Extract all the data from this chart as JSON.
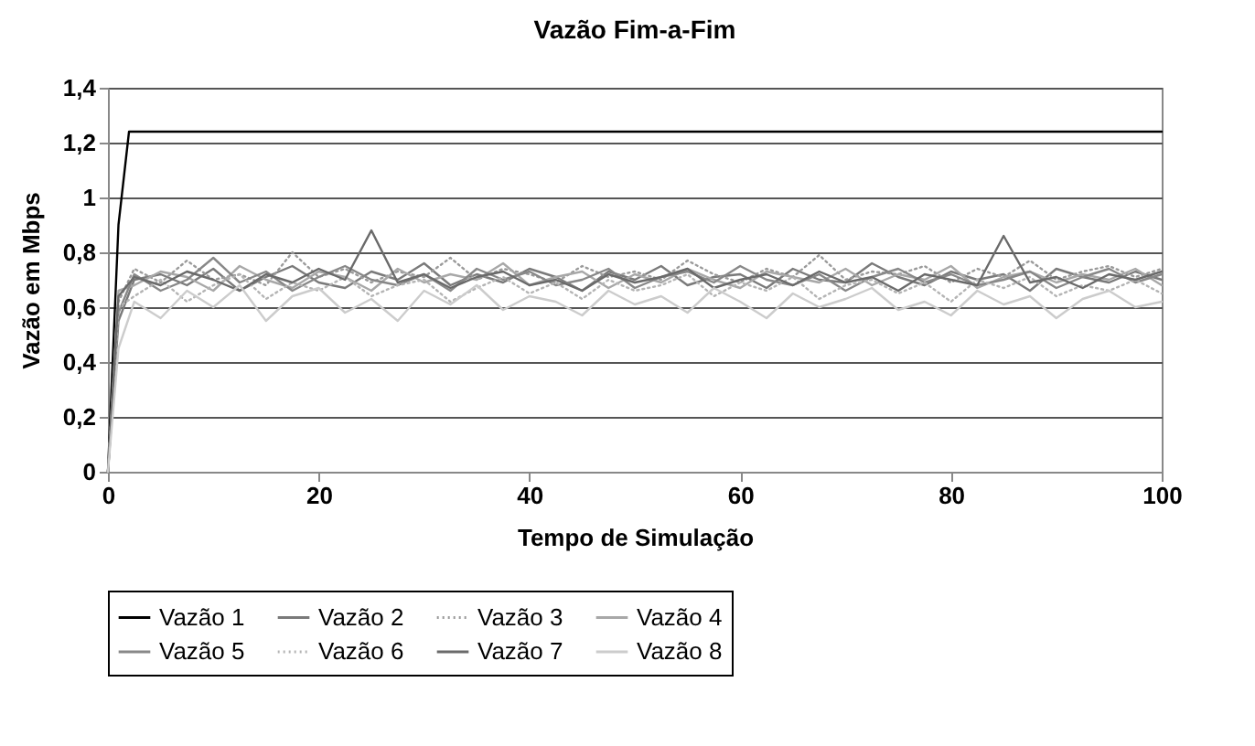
{
  "chart_data": {
    "type": "line",
    "title": "Vazão Fim-a-Fim",
    "xlabel": "Tempo de Simulação",
    "ylabel": "Vazão em Mbps",
    "xlim": [
      0,
      100
    ],
    "xticks": [
      0,
      20,
      40,
      60,
      80,
      100
    ],
    "ylim": [
      0,
      1.4
    ],
    "yticks": [
      0,
      {
        "value": 0.2,
        "label": "0,2"
      },
      {
        "value": 0.4,
        "label": "0,4"
      },
      {
        "value": 0.6,
        "label": "0,6"
      },
      {
        "value": 0.8,
        "label": "0,8"
      },
      1,
      {
        "value": 1.2,
        "label": "1,2"
      },
      {
        "value": 1.4,
        "label": "1,4"
      }
    ],
    "grid": "y",
    "legend": "bottom",
    "line_style": "solid",
    "x": [
      0,
      1,
      2.5,
      5,
      7.5,
      10,
      12.5,
      15,
      17.5,
      20,
      22.5,
      25,
      27.5,
      30,
      32.5,
      35,
      37.5,
      40,
      42.5,
      45,
      47.5,
      50,
      52.5,
      55,
      57.5,
      60,
      62.5,
      65,
      67.5,
      70,
      72.5,
      75,
      77.5,
      80,
      82.5,
      85,
      87.5,
      90,
      92.5,
      95,
      97.5,
      100
    ],
    "series": [
      {
        "name": "Vazão 1",
        "color": "#000000",
        "x": [
          0,
          1,
          2,
          100
        ],
        "values": [
          0,
          0.9,
          1.24,
          1.24
        ]
      },
      {
        "name": "Vazão 2",
        "color": "#7a7a7a",
        "values": [
          0,
          0.55,
          0.7,
          0.72,
          0.68,
          0.74,
          0.66,
          0.71,
          0.75,
          0.69,
          0.67,
          0.73,
          0.7,
          0.76,
          0.68,
          0.72,
          0.69,
          0.74,
          0.71,
          0.66,
          0.73,
          0.7,
          0.75,
          0.68,
          0.71,
          0.72,
          0.67,
          0.74,
          0.7,
          0.69,
          0.76,
          0.71,
          0.68,
          0.73,
          0.7,
          0.72,
          0.66,
          0.74,
          0.71,
          0.69,
          0.73,
          0.7
        ]
      },
      {
        "name": "Vazão 3",
        "color": "#9a9a9a",
        "line_style": "dotted",
        "values": [
          0,
          0.62,
          0.74,
          0.69,
          0.77,
          0.7,
          0.72,
          0.68,
          0.8,
          0.71,
          0.74,
          0.69,
          0.73,
          0.71,
          0.78,
          0.7,
          0.74,
          0.72,
          0.69,
          0.75,
          0.71,
          0.73,
          0.7,
          0.77,
          0.72,
          0.69,
          0.74,
          0.71,
          0.79,
          0.7,
          0.73,
          0.72,
          0.75,
          0.69,
          0.74,
          0.71,
          0.77,
          0.7,
          0.73,
          0.75,
          0.71,
          0.74
        ]
      },
      {
        "name": "Vazão 4",
        "color": "#a8a8a8",
        "values": [
          0,
          0.66,
          0.68,
          0.73,
          0.71,
          0.66,
          0.75,
          0.7,
          0.67,
          0.73,
          0.71,
          0.66,
          0.74,
          0.69,
          0.72,
          0.7,
          0.76,
          0.68,
          0.71,
          0.73,
          0.67,
          0.72,
          0.69,
          0.74,
          0.7,
          0.67,
          0.73,
          0.71,
          0.69,
          0.74,
          0.68,
          0.72,
          0.7,
          0.75,
          0.67,
          0.71,
          0.73,
          0.69,
          0.72,
          0.7,
          0.74,
          0.68
        ]
      },
      {
        "name": "Vazão 5",
        "color": "#888888",
        "values": [
          0,
          0.58,
          0.72,
          0.66,
          0.7,
          0.78,
          0.69,
          0.73,
          0.66,
          0.71,
          0.75,
          0.7,
          0.68,
          0.72,
          0.66,
          0.74,
          0.7,
          0.73,
          0.68,
          0.7,
          0.74,
          0.67,
          0.71,
          0.73,
          0.69,
          0.75,
          0.7,
          0.68,
          0.72,
          0.66,
          0.71,
          0.74,
          0.69,
          0.72,
          0.68,
          0.7,
          0.73,
          0.67,
          0.71,
          0.74,
          0.69,
          0.72
        ]
      },
      {
        "name": "Vazão 6",
        "color": "#b4b4b4",
        "line_style": "dotted",
        "values": [
          0,
          0.6,
          0.64,
          0.7,
          0.62,
          0.68,
          0.72,
          0.63,
          0.69,
          0.66,
          0.71,
          0.64,
          0.68,
          0.7,
          0.62,
          0.67,
          0.71,
          0.65,
          0.69,
          0.63,
          0.7,
          0.66,
          0.68,
          0.72,
          0.64,
          0.69,
          0.66,
          0.71,
          0.63,
          0.68,
          0.7,
          0.65,
          0.69,
          0.62,
          0.7,
          0.67,
          0.71,
          0.64,
          0.68,
          0.66,
          0.7,
          0.65
        ]
      },
      {
        "name": "Vazão 7",
        "color": "#6a6a6a",
        "values": [
          0,
          0.64,
          0.71,
          0.68,
          0.73,
          0.7,
          0.66,
          0.72,
          0.69,
          0.74,
          0.7,
          0.88,
          0.69,
          0.72,
          0.67,
          0.71,
          0.73,
          0.68,
          0.7,
          0.66,
          0.72,
          0.69,
          0.71,
          0.74,
          0.67,
          0.7,
          0.72,
          0.68,
          0.73,
          0.69,
          0.71,
          0.66,
          0.72,
          0.7,
          0.68,
          0.86,
          0.69,
          0.71,
          0.67,
          0.72,
          0.7,
          0.73
        ]
      },
      {
        "name": "Vazão 8",
        "color": "#cccccc",
        "values": [
          0,
          0.45,
          0.62,
          0.56,
          0.66,
          0.6,
          0.68,
          0.55,
          0.64,
          0.67,
          0.58,
          0.63,
          0.55,
          0.66,
          0.61,
          0.68,
          0.59,
          0.64,
          0.62,
          0.57,
          0.66,
          0.61,
          0.64,
          0.58,
          0.67,
          0.62,
          0.56,
          0.65,
          0.6,
          0.63,
          0.67,
          0.59,
          0.62,
          0.57,
          0.66,
          0.61,
          0.64,
          0.56,
          0.63,
          0.66,
          0.6,
          0.62
        ]
      }
    ]
  }
}
